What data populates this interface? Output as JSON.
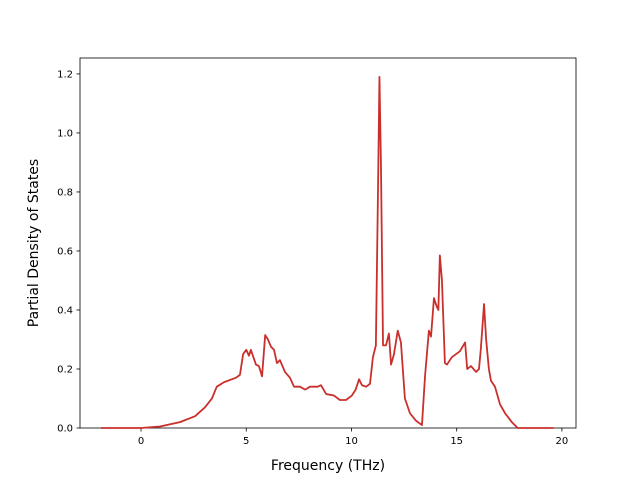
{
  "chart_data": {
    "type": "line",
    "xlabel": "Frequency (THz)",
    "ylabel": "Partial Density of States",
    "xlim": [
      -2.9,
      20.67
    ],
    "ylim": [
      0,
      1.254
    ],
    "xticks": [
      0,
      5,
      10,
      15,
      20
    ],
    "yticks": [
      {
        "value": 0,
        "label": "0.0"
      },
      0.2,
      0.4,
      0.6,
      0.8,
      {
        "value": 1,
        "label": "1.0"
      },
      1.2
    ],
    "grid": false,
    "x": [
      -1.9,
      0,
      0.9,
      1.85,
      2.57,
      3.04,
      3.37,
      3.6,
      3.94,
      4.5,
      4.7,
      4.85,
      5.0,
      5.13,
      5.22,
      5.46,
      5.6,
      5.75,
      5.9,
      6.03,
      6.18,
      6.32,
      6.46,
      6.6,
      6.84,
      7.08,
      7.27,
      7.55,
      7.8,
      8.03,
      8.4,
      8.55,
      8.8,
      9.17,
      9.45,
      9.74,
      10.02,
      10.2,
      10.36,
      10.5,
      10.7,
      10.88,
      11.02,
      11.16,
      11.26,
      11.33,
      11.4,
      11.5,
      11.64,
      11.78,
      11.88,
      12.02,
      12.2,
      12.35,
      12.54,
      12.78,
      13.06,
      13.35,
      13.5,
      13.68,
      13.78,
      13.92,
      14.06,
      14.13,
      14.2,
      14.3,
      14.44,
      14.54,
      14.77,
      15.15,
      15.4,
      15.5,
      15.68,
      15.92,
      16.06,
      16.15,
      16.3,
      16.4,
      16.53,
      16.63,
      16.82,
      17.06,
      17.3,
      17.62,
      17.9,
      19.6
    ],
    "series": [
      {
        "color": "#c9302c",
        "values": [
          0,
          0,
          0.005,
          0.02,
          0.04,
          0.07,
          0.1,
          0.14,
          0.155,
          0.17,
          0.18,
          0.25,
          0.265,
          0.245,
          0.265,
          0.215,
          0.21,
          0.175,
          0.315,
          0.3,
          0.275,
          0.265,
          0.22,
          0.23,
          0.19,
          0.17,
          0.14,
          0.14,
          0.13,
          0.14,
          0.14,
          0.145,
          0.115,
          0.11,
          0.095,
          0.095,
          0.11,
          0.13,
          0.165,
          0.145,
          0.14,
          0.15,
          0.24,
          0.28,
          0.8,
          1.19,
          0.9,
          0.28,
          0.28,
          0.32,
          0.215,
          0.25,
          0.33,
          0.29,
          0.1,
          0.05,
          0.025,
          0.01,
          0.18,
          0.33,
          0.31,
          0.44,
          0.41,
          0.4,
          0.585,
          0.5,
          0.22,
          0.215,
          0.24,
          0.26,
          0.29,
          0.2,
          0.21,
          0.19,
          0.2,
          0.27,
          0.42,
          0.3,
          0.2,
          0.16,
          0.14,
          0.08,
          0.05,
          0.02,
          0,
          0
        ]
      }
    ]
  }
}
